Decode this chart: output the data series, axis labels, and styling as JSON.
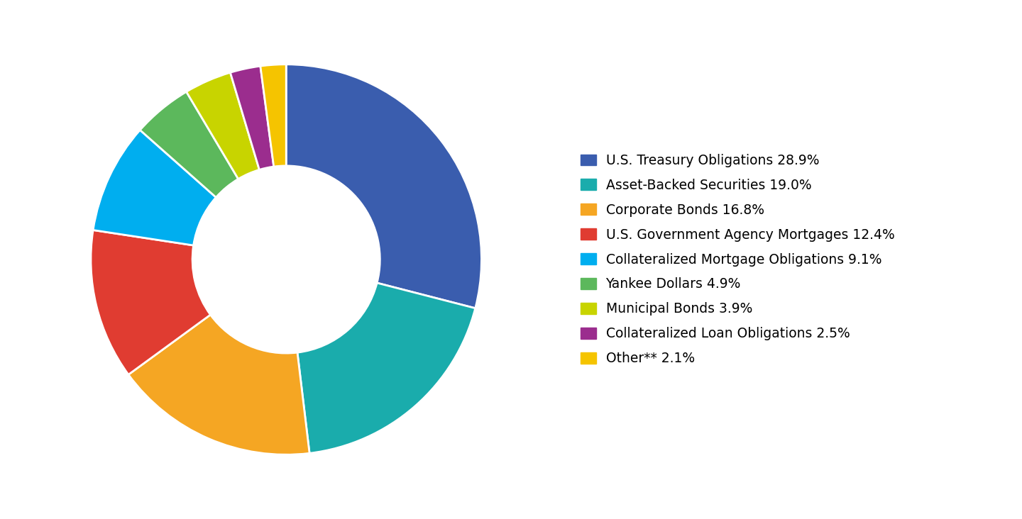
{
  "labels": [
    "U.S. Treasury Obligations 28.9%",
    "Asset-Backed Securities 19.0%",
    "Corporate Bonds 16.8%",
    "U.S. Government Agency Mortgages 12.4%",
    "Collateralized Mortgage Obligations 9.1%",
    "Yankee Dollars 4.9%",
    "Municipal Bonds 3.9%",
    "Collateralized Loan Obligations 2.5%",
    "Other** 2.1%"
  ],
  "values": [
    28.9,
    19.0,
    16.8,
    12.4,
    9.1,
    4.9,
    3.9,
    2.5,
    2.1
  ],
  "colors": [
    "#3A5DAE",
    "#1AACAC",
    "#F5A623",
    "#E03C31",
    "#00AEEF",
    "#5CB85C",
    "#C8D400",
    "#9B2D8E",
    "#F5C400"
  ],
  "background_color": "#ffffff",
  "legend_fontsize": 13.5,
  "figsize": [
    14.4,
    7.32
  ],
  "dpi": 100
}
